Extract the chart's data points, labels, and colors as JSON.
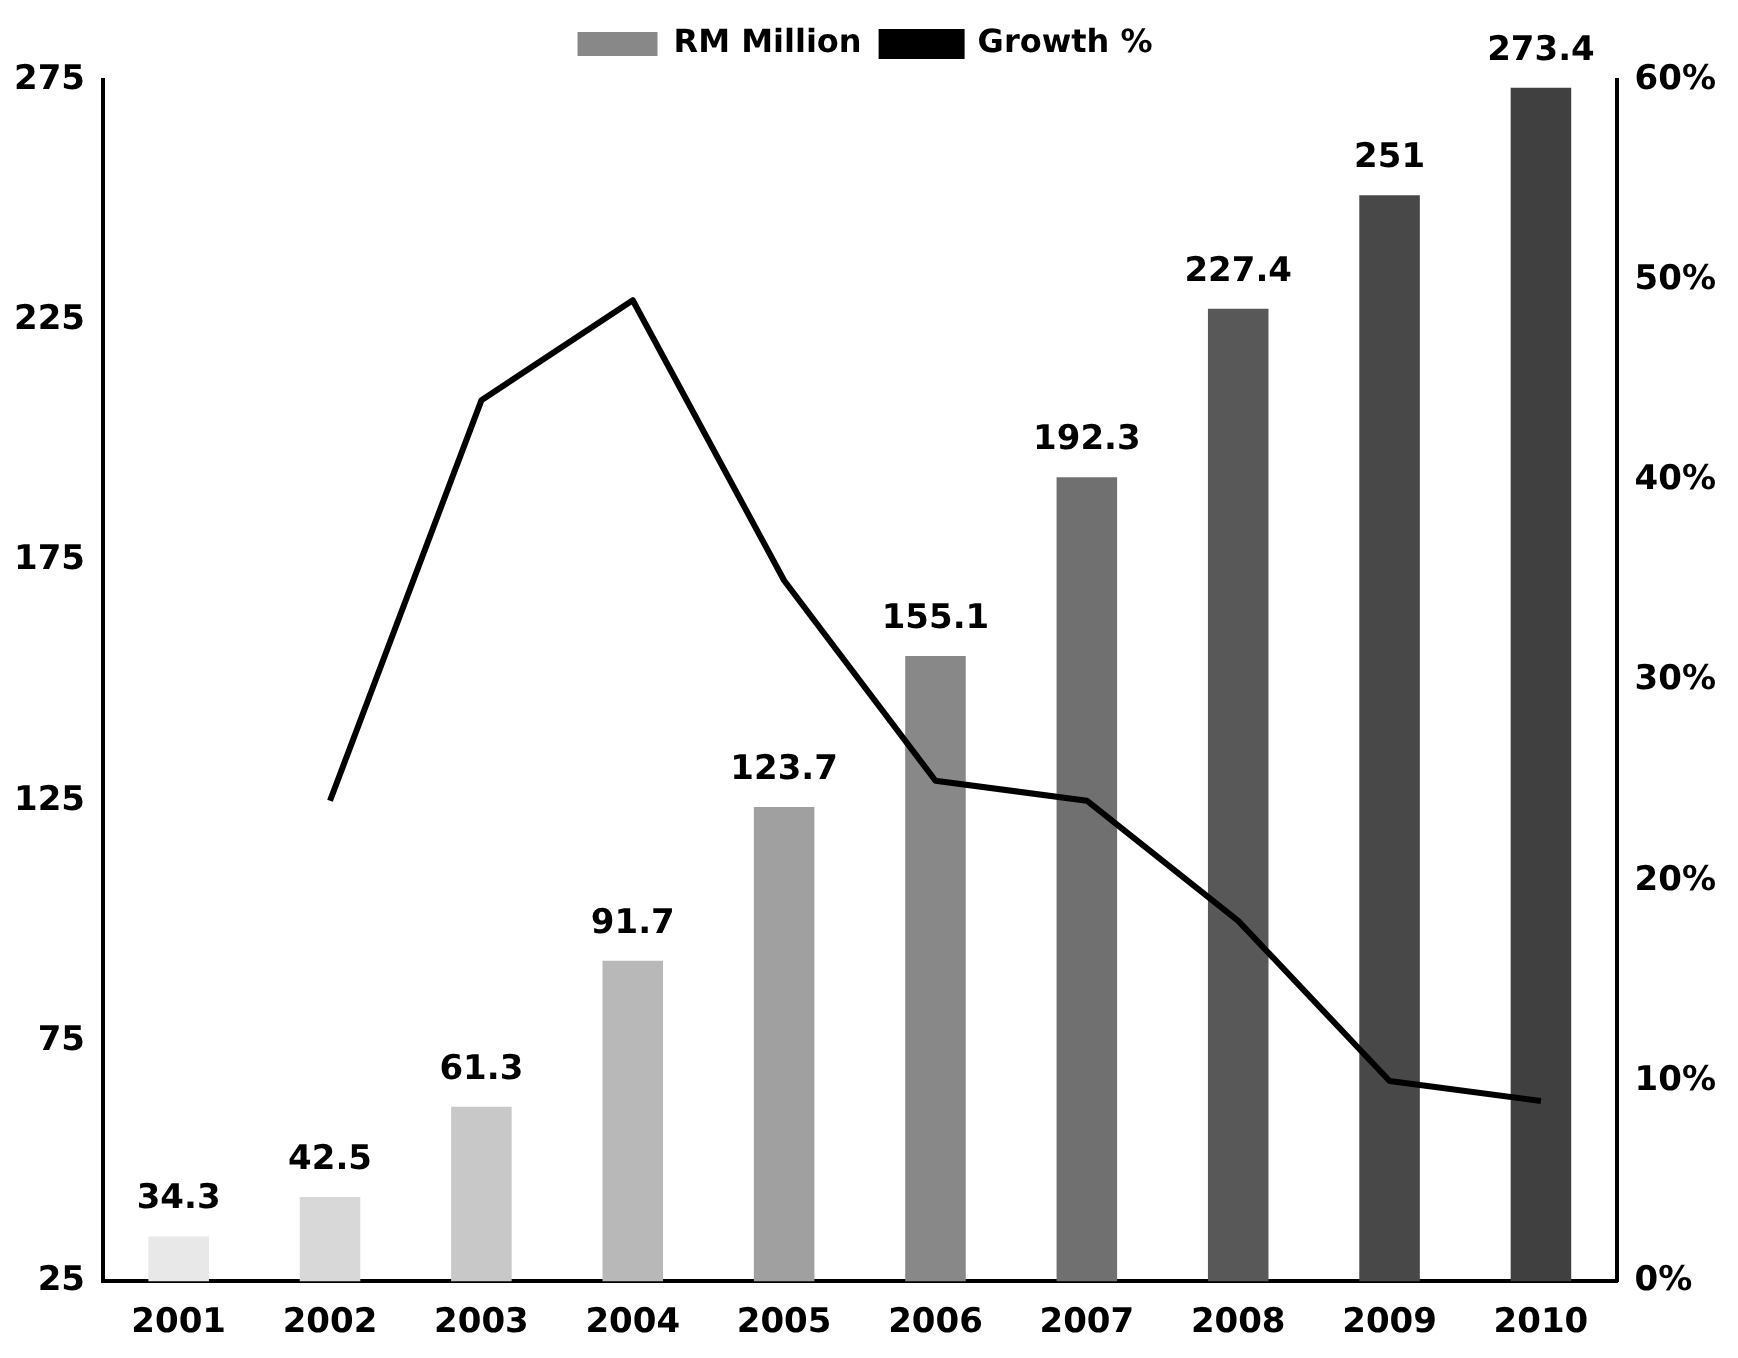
{
  "chart_data": {
    "type": "bar",
    "categories": [
      "2001",
      "2002",
      "2003",
      "2004",
      "2005",
      "2006",
      "2007",
      "2008",
      "2009",
      "2010"
    ],
    "series": [
      {
        "name": "RM Million",
        "colors": [
          "#e8e8e8",
          "#d8d8d8",
          "#c8c8c8",
          "#b8b8b8",
          "#a0a0a0",
          "#888888",
          "#707070",
          "#585858",
          "#484848",
          "#404040"
        ],
        "values": [
          34.3,
          42.5,
          61.3,
          91.7,
          123.7,
          155.1,
          192.3,
          227.4,
          251,
          273.4
        ],
        "value_labels": [
          "34.3",
          "42.5",
          "61.3",
          "91.7",
          "123.7",
          "155.1",
          "192.3",
          "227.4",
          "251",
          "273.4"
        ]
      },
      {
        "name": "Growth %",
        "type": "line",
        "axis": "y2",
        "color": "#000000",
        "values": [
          null,
          24,
          44,
          49,
          35,
          25,
          24,
          18,
          10,
          9
        ]
      }
    ],
    "ylim": [
      25,
      275
    ],
    "yticks": [
      25,
      75,
      125,
      175,
      225,
      275
    ],
    "y2lim": [
      0,
      60
    ],
    "y2ticks": [
      {
        "value": 0,
        "label": "0%"
      },
      {
        "value": 10,
        "label": "10%"
      },
      {
        "value": 20,
        "label": "20%"
      },
      {
        "value": 30,
        "label": "30%"
      },
      {
        "value": 40,
        "label": "40%"
      },
      {
        "value": 50,
        "label": "50%"
      },
      {
        "value": 60,
        "label": "60%"
      }
    ],
    "grid": false,
    "legend": "top",
    "marker": "none"
  }
}
